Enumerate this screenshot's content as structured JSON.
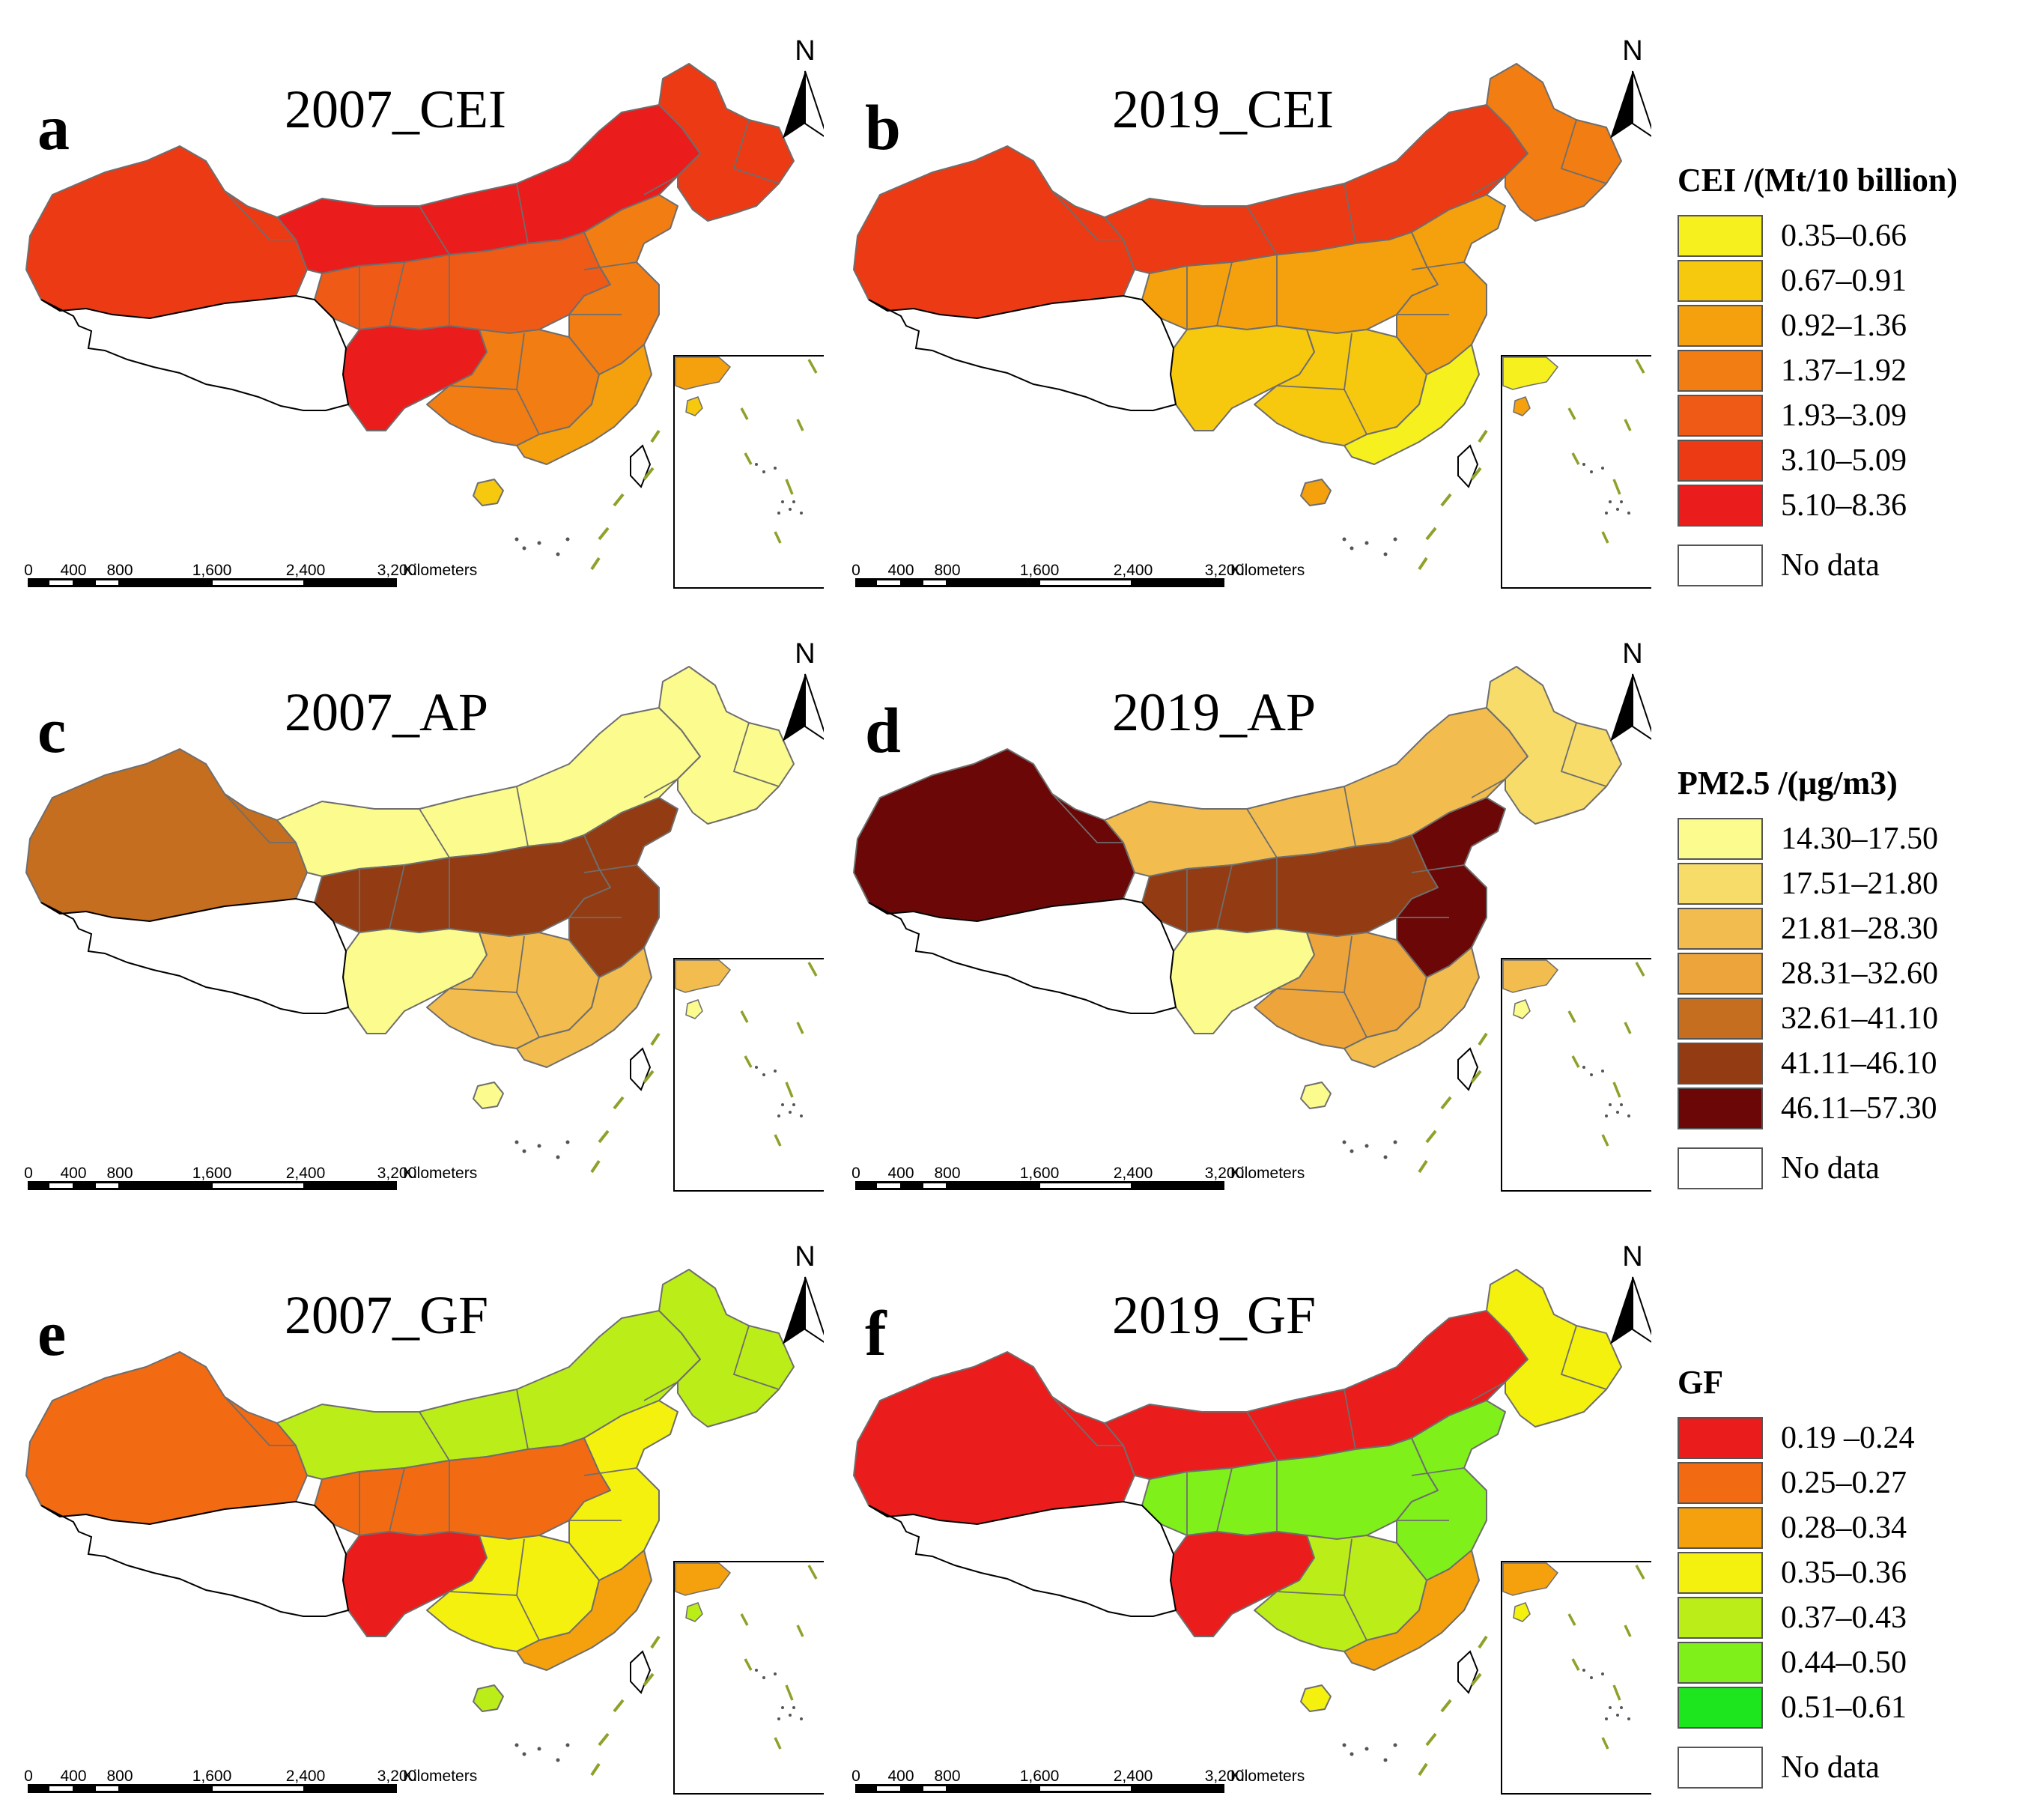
{
  "figure": {
    "panels": [
      {
        "letter": "a",
        "title": "2007_CEI",
        "variable": "CEI",
        "classes": {
          "northeast": 5,
          "north": 6,
          "west": 5,
          "central": 4,
          "south": 3,
          "southwest": 6,
          "east": 3,
          "coast": 2,
          "hainan": 1
        }
      },
      {
        "letter": "b",
        "title": "2019_CEI",
        "variable": "CEI",
        "classes": {
          "northeast": 3,
          "north": 5,
          "west": 5,
          "central": 2,
          "south": 1,
          "southwest": 1,
          "east": 2,
          "coast": 0,
          "hainan": 2
        }
      },
      {
        "letter": "c",
        "title": "2007_AP",
        "variable": "AP",
        "classes": {
          "northeast": 0,
          "north": 0,
          "west": 4,
          "central": 5,
          "south": 2,
          "southwest": 0,
          "east": 5,
          "coast": 2,
          "hainan": 0
        }
      },
      {
        "letter": "d",
        "title": "2019_AP",
        "variable": "AP",
        "classes": {
          "northeast": 1,
          "north": 2,
          "west": 6,
          "central": 5,
          "south": 3,
          "southwest": 0,
          "east": 6,
          "coast": 2,
          "hainan": 0
        }
      },
      {
        "letter": "e",
        "title": "2007_GF",
        "variable": "GF",
        "classes": {
          "northeast": 4,
          "north": 4,
          "west": 1,
          "central": 1,
          "south": 3,
          "southwest": 0,
          "east": 3,
          "coast": 2,
          "hainan": 4
        }
      },
      {
        "letter": "f",
        "title": "2019_GF",
        "variable": "GF",
        "classes": {
          "northeast": 3,
          "north": 0,
          "west": 0,
          "central": 5,
          "south": 4,
          "southwest": 0,
          "east": 5,
          "coast": 2,
          "hainan": 3
        }
      }
    ],
    "scale_bar": {
      "ticks": [
        "0",
        "400",
        "800",
        "1,600",
        "2,400",
        "3,200"
      ],
      "unit": "Kilometers"
    },
    "north_label": "N"
  },
  "legends": [
    {
      "title": "CEI /(Mt/10 billion)",
      "classes": [
        {
          "label": "0.35–0.66",
          "color": "#f5f01e"
        },
        {
          "label": "0.67–0.91",
          "color": "#f6c90f"
        },
        {
          "label": "0.92–1.36",
          "color": "#f5a10e"
        },
        {
          "label": "1.37–1.92",
          "color": "#f27d12"
        },
        {
          "label": "1.93–3.09",
          "color": "#ef5a16"
        },
        {
          "label": "3.10–5.09",
          "color": "#ec3a15"
        },
        {
          "label": "5.10–8.36",
          "color": "#eb1c1c"
        }
      ],
      "no_data": "No data"
    },
    {
      "title": "PM2.5 /(μg/m3)",
      "classes": [
        {
          "label": "14.30–17.50",
          "color": "#fbfb8e"
        },
        {
          "label": "17.51–21.80",
          "color": "#f7dc6a"
        },
        {
          "label": "21.81–28.30",
          "color": "#f2bd4e"
        },
        {
          "label": "28.31–32.60",
          "color": "#eda43a"
        },
        {
          "label": "32.61–41.10",
          "color": "#c56e20"
        },
        {
          "label": "41.11–46.10",
          "color": "#933b12"
        },
        {
          "label": "46.11–57.30",
          "color": "#6b0707"
        }
      ],
      "no_data": "No data"
    },
    {
      "title": "GF",
      "classes": [
        {
          "label": "0.19 –0.24",
          "color": "#eb1c1c"
        },
        {
          "label": "0.25–0.27",
          "color": "#f26a12"
        },
        {
          "label": "0.28–0.34",
          "color": "#f5a10e"
        },
        {
          "label": "0.35–0.36",
          "color": "#f4f10e"
        },
        {
          "label": "0.37–0.43",
          "color": "#bbee18"
        },
        {
          "label": "0.44–0.50",
          "color": "#7ff01a"
        },
        {
          "label": "0.51–0.61",
          "color": "#1ee61e"
        }
      ],
      "no_data": "No data"
    }
  ]
}
